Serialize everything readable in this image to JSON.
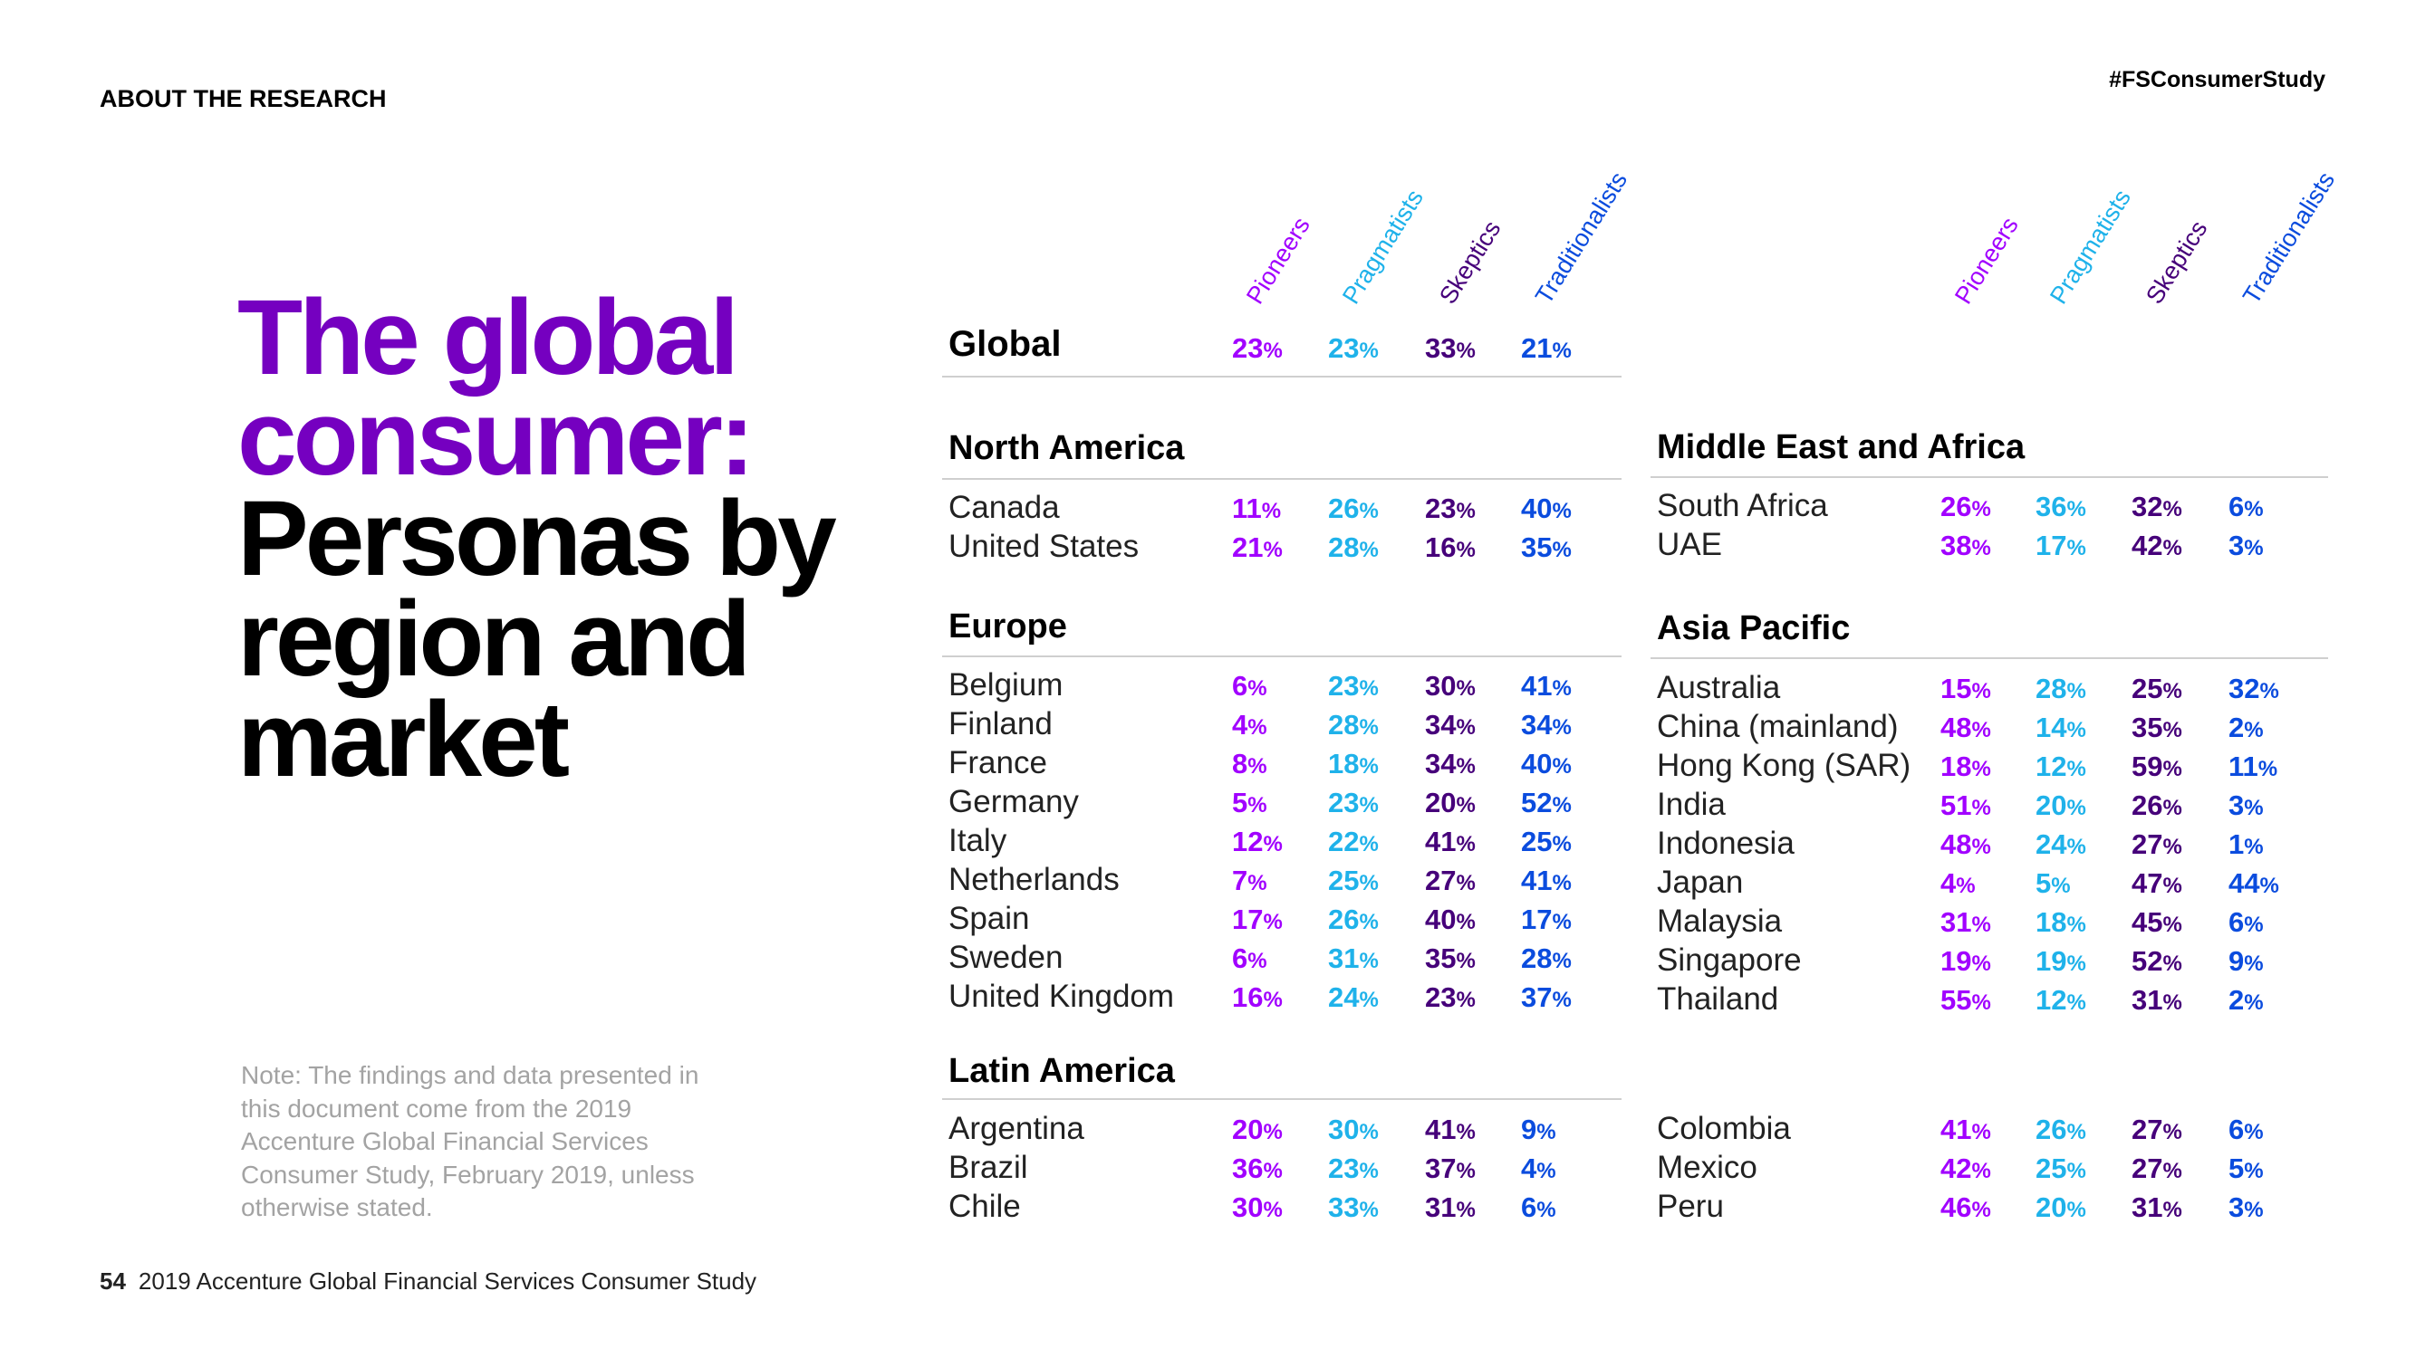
{
  "header": {
    "section_label": "ABOUT THE RESEARCH",
    "hashtag": "#FSConsumerStudy"
  },
  "title": {
    "purple_lines": [
      "The global",
      "consumer:"
    ],
    "black_lines": [
      "Personas by",
      "region and",
      "market"
    ]
  },
  "note": "Note: The findings and data presented in this document come from the 2019 Accenture Global Financial Services Consumer Study, February 2019, unless otherwise stated.",
  "footer": {
    "page_number": "54",
    "text": "2019 Accenture Global Financial Services Consumer Study"
  },
  "colors": {
    "pioneers": "#a100ff",
    "pragmatists": "#1fb2ea",
    "skeptics": "#46007a",
    "traditionalists": "#0b4cde",
    "title_purple": "#7500c0"
  },
  "personas": [
    "Pioneers",
    "Pragmatists",
    "Skeptics",
    "Traditionalists"
  ],
  "percent_sign": "%",
  "table": {
    "left": [
      {
        "title": "Global",
        "rows": [
          {
            "name": "",
            "values": [
              "23",
              "23",
              "33",
              "21"
            ]
          }
        ]
      },
      {
        "title": "North America",
        "rows": [
          {
            "name": "Canada",
            "values": [
              "11",
              "26",
              "23",
              "40"
            ]
          },
          {
            "name": "United States",
            "values": [
              "21",
              "28",
              "16",
              "35"
            ]
          }
        ]
      },
      {
        "title": "Europe",
        "rows": [
          {
            "name": "Belgium",
            "values": [
              "6",
              "23",
              "30",
              "41"
            ]
          },
          {
            "name": "Finland",
            "values": [
              "4",
              "28",
              "34",
              "34"
            ]
          },
          {
            "name": "France",
            "values": [
              "8",
              "18",
              "34",
              "40"
            ]
          },
          {
            "name": "Germany",
            "values": [
              "5",
              "23",
              "20",
              "52"
            ]
          },
          {
            "name": "Italy",
            "values": [
              "12",
              "22",
              "41",
              "25"
            ]
          },
          {
            "name": "Netherlands",
            "values": [
              "7",
              "25",
              "27",
              "41"
            ]
          },
          {
            "name": "Spain",
            "values": [
              "17",
              "26",
              "40",
              "17"
            ]
          },
          {
            "name": "Sweden",
            "values": [
              "6",
              "31",
              "35",
              "28"
            ]
          },
          {
            "name": "United Kingdom",
            "values": [
              "16",
              "24",
              "23",
              "37"
            ]
          }
        ]
      },
      {
        "title": "Latin America",
        "rows": [
          {
            "name": "Argentina",
            "values": [
              "20",
              "30",
              "41",
              "9"
            ]
          },
          {
            "name": "Brazil",
            "values": [
              "36",
              "23",
              "37",
              "4"
            ]
          },
          {
            "name": "Chile",
            "values": [
              "30",
              "33",
              "31",
              "6"
            ]
          }
        ]
      }
    ],
    "right": [
      {
        "title": "Middle East and Africa",
        "rows": [
          {
            "name": "South Africa",
            "values": [
              "26",
              "36",
              "32",
              "6"
            ]
          },
          {
            "name": "UAE",
            "values": [
              "38",
              "17",
              "42",
              "3"
            ]
          }
        ]
      },
      {
        "title": "Asia Pacific",
        "rows": [
          {
            "name": "Australia",
            "values": [
              "15",
              "28",
              "25",
              "32"
            ]
          },
          {
            "name": "China (mainland)",
            "values": [
              "48",
              "14",
              "35",
              "2"
            ]
          },
          {
            "name": "Hong Kong (SAR)",
            "values": [
              "18",
              "12",
              "59",
              "11"
            ]
          },
          {
            "name": "India",
            "values": [
              "51",
              "20",
              "26",
              "3"
            ]
          },
          {
            "name": "Indonesia",
            "values": [
              "48",
              "24",
              "27",
              "1"
            ]
          },
          {
            "name": "Japan",
            "values": [
              "4",
              "5",
              "47",
              "44"
            ]
          },
          {
            "name": "Malaysia",
            "values": [
              "31",
              "18",
              "45",
              "6"
            ]
          },
          {
            "name": "Singapore",
            "values": [
              "19",
              "19",
              "52",
              "9"
            ]
          },
          {
            "name": "Thailand",
            "values": [
              "55",
              "12",
              "31",
              "2"
            ]
          }
        ]
      },
      {
        "title": "",
        "rows": [
          {
            "name": "Colombia",
            "values": [
              "41",
              "26",
              "27",
              "6"
            ]
          },
          {
            "name": "Mexico",
            "values": [
              "42",
              "25",
              "27",
              "5"
            ]
          },
          {
            "name": "Peru",
            "values": [
              "46",
              "20",
              "31",
              "3"
            ]
          }
        ]
      }
    ]
  }
}
